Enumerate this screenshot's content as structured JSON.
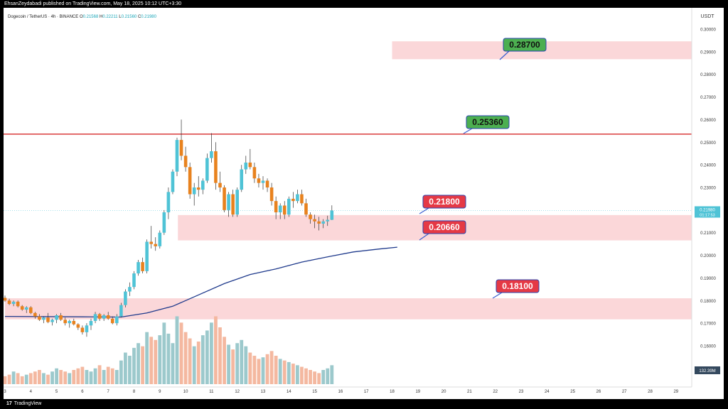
{
  "header": {
    "published": "EhsanZeydabadi published on TradingView.com, May 18, 2025 10:12 UTC+3:30"
  },
  "footer": {
    "logo": "17",
    "brand": "TradingView"
  },
  "chart_data": {
    "type": "candlestick",
    "title": "Dogecoin / TetherUS · 4h · BINANCE",
    "ohlc": {
      "open_label": "O",
      "open": "0.21568",
      "high_label": "H",
      "high": "0.22211",
      "low_label": "L",
      "low": "0.21560",
      "close_label": "C",
      "close": "0.21980"
    },
    "currency": "USDT",
    "y_ticks": [
      "0.30000",
      "0.29000",
      "0.28000",
      "0.27000",
      "0.26000",
      "0.25000",
      "0.24000",
      "0.23000",
      "0.22000",
      "0.21000",
      "0.20000",
      "0.19000",
      "0.18000",
      "0.17000",
      "0.16000"
    ],
    "y_tick_values": [
      0.3,
      0.29,
      0.28,
      0.27,
      0.26,
      0.25,
      0.24,
      0.23,
      0.22,
      0.21,
      0.2,
      0.19,
      0.18,
      0.17,
      0.16
    ],
    "ylim": [
      0.145,
      0.303
    ],
    "x_ticks": [
      "3",
      "4",
      "5",
      "6",
      "7",
      "8",
      "9",
      "10",
      "11",
      "12",
      "13",
      "14",
      "15",
      "16",
      "17",
      "18",
      "19",
      "20",
      "21",
      "22",
      "23",
      "24",
      "25",
      "26",
      "27",
      "28",
      "29"
    ],
    "x_tick_days": [
      3,
      4,
      5,
      6,
      7,
      8,
      9,
      10,
      11,
      12,
      13,
      14,
      15,
      16,
      17,
      18,
      19,
      20,
      21,
      22,
      23,
      24,
      25,
      26,
      27,
      28,
      29
    ],
    "xlim_days": [
      3.0,
      29.95
    ],
    "current_price": "0.21980",
    "countdown": "01:17:53",
    "volume_label": "132.39M",
    "colors": {
      "up": "#4fc3d6",
      "down": "#e8821e",
      "zone_fill": "#fbd7d9",
      "resistance": "#d93a3a",
      "ma": "#1f3a8c",
      "green_label": "#4caf50",
      "red_label": "#e53945"
    },
    "levels": [
      {
        "price": 0.287,
        "label": "0.28700",
        "color": "green"
      },
      {
        "price": 0.2536,
        "label": "0.25360",
        "color": "green"
      },
      {
        "price": 0.218,
        "label": "0.21800",
        "color": "red"
      },
      {
        "price": 0.2066,
        "label": "0.20660",
        "color": "red"
      },
      {
        "price": 0.181,
        "label": "0.18100",
        "color": "red"
      }
    ],
    "zones": [
      {
        "top": 0.2946,
        "bottom": 0.2867,
        "start_day": 18.0,
        "end_day": 29.95
      },
      {
        "top": 0.2178,
        "bottom": 0.2066,
        "start_day": 9.7,
        "end_day": 29.95
      },
      {
        "top": 0.181,
        "bottom": 0.1717,
        "start_day": 3.0,
        "end_day": 29.95
      }
    ],
    "resistance_line": 0.2536,
    "ma_line": [
      [
        3.0,
        0.173
      ],
      [
        6.0,
        0.1728
      ],
      [
        7.5,
        0.1727
      ],
      [
        8.5,
        0.1745
      ],
      [
        9.5,
        0.1775
      ],
      [
        10.5,
        0.1825
      ],
      [
        11.5,
        0.1875
      ],
      [
        12.5,
        0.1915
      ],
      [
        13.5,
        0.194
      ],
      [
        14.5,
        0.197
      ],
      [
        15.5,
        0.1993
      ],
      [
        16.5,
        0.2015
      ],
      [
        17.5,
        0.2028
      ],
      [
        18.2,
        0.2036
      ]
    ],
    "candles": [
      [
        0.1812,
        0.1822,
        0.1795,
        0.18
      ],
      [
        0.18,
        0.1808,
        0.178,
        0.1785
      ],
      [
        0.1785,
        0.18,
        0.1775,
        0.1795
      ],
      [
        0.1795,
        0.18,
        0.177,
        0.1775
      ],
      [
        0.1775,
        0.178,
        0.1755,
        0.176
      ],
      [
        0.176,
        0.1775,
        0.1745,
        0.177
      ],
      [
        0.177,
        0.1775,
        0.174,
        0.1745
      ],
      [
        0.1745,
        0.175,
        0.172,
        0.173
      ],
      [
        0.173,
        0.174,
        0.171,
        0.1715
      ],
      [
        0.1715,
        0.173,
        0.17,
        0.1725
      ],
      [
        0.1725,
        0.1745,
        0.17,
        0.1705
      ],
      [
        0.1705,
        0.172,
        0.169,
        0.1715
      ],
      [
        0.1715,
        0.174,
        0.17,
        0.1735
      ],
      [
        0.1735,
        0.1745,
        0.171,
        0.1715
      ],
      [
        0.1715,
        0.1725,
        0.169,
        0.17
      ],
      [
        0.17,
        0.1715,
        0.168,
        0.171
      ],
      [
        0.171,
        0.172,
        0.169,
        0.1695
      ],
      [
        0.1695,
        0.17,
        0.167,
        0.168
      ],
      [
        0.168,
        0.169,
        0.165,
        0.166
      ],
      [
        0.166,
        0.17,
        0.164,
        0.169
      ],
      [
        0.169,
        0.172,
        0.167,
        0.171
      ],
      [
        0.171,
        0.175,
        0.17,
        0.174
      ],
      [
        0.174,
        0.1745,
        0.171,
        0.172
      ],
      [
        0.172,
        0.174,
        0.171,
        0.1735
      ],
      [
        0.1735,
        0.175,
        0.1715,
        0.172
      ],
      [
        0.172,
        0.173,
        0.1695,
        0.17
      ],
      [
        0.17,
        0.174,
        0.169,
        0.173
      ],
      [
        0.173,
        0.179,
        0.1725,
        0.178
      ],
      [
        0.178,
        0.185,
        0.177,
        0.184
      ],
      [
        0.184,
        0.188,
        0.182,
        0.186
      ],
      [
        0.186,
        0.193,
        0.185,
        0.192
      ],
      [
        0.192,
        0.198,
        0.191,
        0.197
      ],
      [
        0.197,
        0.199,
        0.192,
        0.193
      ],
      [
        0.193,
        0.207,
        0.192,
        0.206
      ],
      [
        0.206,
        0.213,
        0.203,
        0.205
      ],
      [
        0.205,
        0.208,
        0.202,
        0.204
      ],
      [
        0.204,
        0.211,
        0.203,
        0.21
      ],
      [
        0.21,
        0.22,
        0.209,
        0.219
      ],
      [
        0.219,
        0.23,
        0.216,
        0.228
      ],
      [
        0.228,
        0.238,
        0.227,
        0.237
      ],
      [
        0.237,
        0.252,
        0.235,
        0.251
      ],
      [
        0.251,
        0.26,
        0.242,
        0.244
      ],
      [
        0.244,
        0.248,
        0.237,
        0.239
      ],
      [
        0.239,
        0.241,
        0.225,
        0.227
      ],
      [
        0.227,
        0.232,
        0.222,
        0.23
      ],
      [
        0.23,
        0.235,
        0.226,
        0.229
      ],
      [
        0.229,
        0.234,
        0.227,
        0.233
      ],
      [
        0.233,
        0.245,
        0.232,
        0.243
      ],
      [
        0.243,
        0.254,
        0.241,
        0.246
      ],
      [
        0.246,
        0.25,
        0.229,
        0.232
      ],
      [
        0.232,
        0.237,
        0.228,
        0.23
      ],
      [
        0.23,
        0.231,
        0.219,
        0.22
      ],
      [
        0.22,
        0.228,
        0.217,
        0.227
      ],
      [
        0.227,
        0.229,
        0.217,
        0.218
      ],
      [
        0.218,
        0.23,
        0.217,
        0.229
      ],
      [
        0.229,
        0.24,
        0.228,
        0.238
      ],
      [
        0.238,
        0.244,
        0.236,
        0.241
      ],
      [
        0.241,
        0.247,
        0.238,
        0.239
      ],
      [
        0.239,
        0.241,
        0.232,
        0.234
      ],
      [
        0.234,
        0.236,
        0.23,
        0.232
      ],
      [
        0.232,
        0.235,
        0.229,
        0.233
      ],
      [
        0.233,
        0.234,
        0.228,
        0.23
      ],
      [
        0.23,
        0.232,
        0.222,
        0.224
      ],
      [
        0.224,
        0.226,
        0.216,
        0.219
      ],
      [
        0.219,
        0.223,
        0.216,
        0.222
      ],
      [
        0.222,
        0.224,
        0.216,
        0.218
      ],
      [
        0.218,
        0.226,
        0.217,
        0.225
      ],
      [
        0.225,
        0.228,
        0.221,
        0.224
      ],
      [
        0.224,
        0.229,
        0.223,
        0.227
      ],
      [
        0.227,
        0.229,
        0.222,
        0.223
      ],
      [
        0.223,
        0.225,
        0.217,
        0.218
      ],
      [
        0.218,
        0.219,
        0.214,
        0.216
      ],
      [
        0.216,
        0.218,
        0.212,
        0.215
      ],
      [
        0.215,
        0.217,
        0.211,
        0.214
      ],
      [
        0.214,
        0.216,
        0.212,
        0.215
      ],
      [
        0.215,
        0.2175,
        0.213,
        0.2157
      ],
      [
        0.2157,
        0.2221,
        0.2156,
        0.2198
      ]
    ],
    "volumes": [
      0.5,
      0.6,
      0.8,
      0.7,
      0.5,
      0.6,
      0.7,
      0.8,
      0.9,
      0.7,
      0.6,
      0.8,
      1.0,
      0.9,
      0.8,
      0.7,
      0.9,
      1.0,
      1.1,
      0.9,
      0.8,
      1.0,
      1.2,
      0.9,
      1.1,
      1.0,
      0.9,
      1.5,
      2.0,
      1.8,
      2.3,
      2.6,
      2.4,
      3.3,
      3.0,
      2.8,
      3.1,
      3.9,
      3.2,
      2.6,
      4.3,
      3.9,
      3.3,
      2.9,
      2.4,
      2.7,
      3.1,
      3.4,
      3.9,
      4.3,
      3.6,
      3.0,
      2.5,
      2.2,
      2.6,
      2.8,
      2.4,
      2.0,
      1.8,
      1.6,
      1.7,
      1.9,
      2.1,
      1.8,
      1.6,
      1.5,
      1.4,
      1.3,
      1.2,
      1.1,
      1.0,
      0.9,
      0.8,
      0.7,
      0.9,
      1.0,
      1.2
    ],
    "vol_max": 4.5
  }
}
